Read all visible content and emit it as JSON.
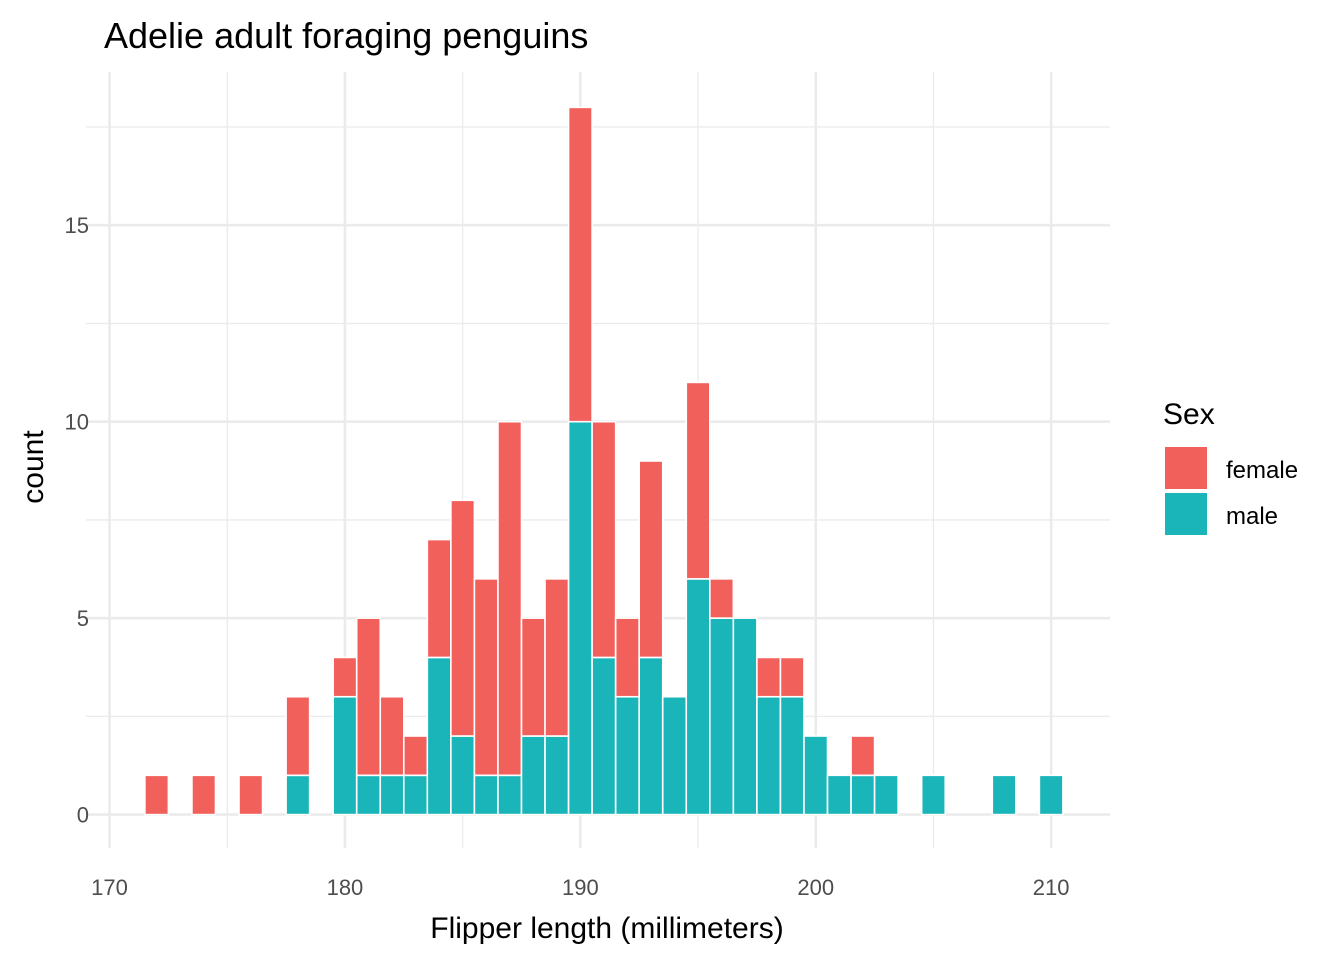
{
  "chart_data": {
    "type": "bar",
    "subtype": "stacked-histogram",
    "title": "Adelie adult foraging penguins",
    "xlabel": "Flipper length (millimeters)",
    "ylabel": "count",
    "xlim": [
      169,
      212.5
    ],
    "ylim": [
      -0.85,
      18.9
    ],
    "x_ticks": [
      170,
      180,
      190,
      200,
      210
    ],
    "x_tick_labels": [
      "170",
      "180",
      "190",
      "200",
      "210"
    ],
    "y_ticks": [
      0,
      5,
      10,
      15
    ],
    "y_tick_labels": [
      "0",
      "5",
      "10",
      "15"
    ],
    "bin_width": 1,
    "grid": true,
    "legend": {
      "title": "Sex",
      "placement": "right"
    },
    "bins": [
      172,
      174,
      176,
      178,
      180,
      181,
      182,
      183,
      184,
      185,
      186,
      187,
      188,
      189,
      190,
      191,
      192,
      193,
      194,
      195,
      196,
      197,
      198,
      199,
      200,
      201,
      202,
      203,
      205,
      208,
      210
    ],
    "series": [
      {
        "name": "male",
        "color": "#19b5b8",
        "values": [
          0,
          0,
          0,
          1,
          3,
          1,
          1,
          1,
          4,
          2,
          1,
          1,
          2,
          2,
          10,
          4,
          3,
          4,
          3,
          6,
          5,
          5,
          3,
          3,
          2,
          1,
          1,
          1,
          1,
          1,
          1
        ]
      },
      {
        "name": "female",
        "color": "#f2605c",
        "values": [
          1,
          1,
          1,
          2,
          1,
          4,
          2,
          1,
          3,
          6,
          5,
          9,
          3,
          4,
          8,
          6,
          2,
          5,
          0,
          5,
          1,
          0,
          1,
          1,
          0,
          0,
          1,
          0,
          0,
          0,
          0
        ]
      }
    ],
    "stack_order": [
      "male",
      "female"
    ],
    "legend_order": [
      "female",
      "male"
    ]
  }
}
